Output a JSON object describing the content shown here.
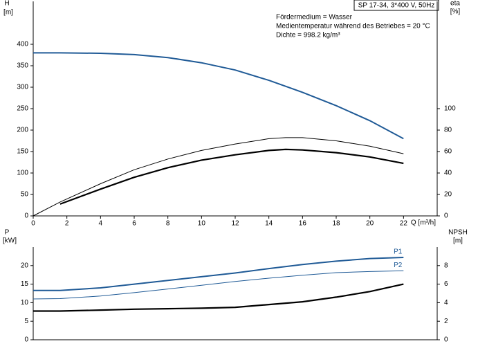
{
  "chart_data": [
    {
      "type": "line",
      "title": "SP 17-34, 3*400 V, 50Hz",
      "annotations": [
        "Fördermedium = Wasser",
        "Medientemperatur während des Betriebes = 20 °C",
        "Dichte = 998.2 kg/m³"
      ],
      "y_label": "H",
      "y_unit": "[m]",
      "y2_label": "eta",
      "y2_unit": "[%]",
      "x_label": "Q [m³/h]",
      "xlim": [
        0,
        24
      ],
      "xticks": [
        0,
        2,
        4,
        6,
        8,
        10,
        12,
        14,
        16,
        18,
        20,
        22
      ],
      "ylim": [
        0,
        500
      ],
      "yticks": [
        0,
        50,
        100,
        150,
        200,
        250,
        300,
        350,
        400
      ],
      "y2lim": [
        0,
        200
      ],
      "y2ticks": [
        0,
        20,
        40,
        60,
        80,
        100
      ],
      "series": [
        {
          "color": "#1f5a96",
          "linewidth": 2,
          "x": [
            0,
            1.6,
            4,
            6,
            8,
            10,
            12,
            14,
            16,
            18,
            20,
            22
          ],
          "values": [
            380,
            380,
            379,
            376,
            369,
            357,
            340,
            316,
            288,
            257,
            222,
            180
          ]
        },
        {
          "color": "#000000",
          "linewidth": 1,
          "axis": "y2",
          "x": [
            0,
            1.6,
            4,
            6,
            8,
            10,
            12,
            14,
            15,
            16,
            18,
            20,
            22
          ],
          "values": [
            0,
            13,
            30,
            43,
            53,
            61,
            67,
            72,
            73,
            73,
            70,
            65,
            58
          ]
        },
        {
          "color": "#000000",
          "linewidth": 2.2,
          "axis": "y2",
          "x": [
            1.6,
            4,
            6,
            8,
            10,
            12,
            14,
            15,
            16,
            18,
            20,
            22
          ],
          "values": [
            11,
            25,
            36,
            45,
            52,
            57,
            61,
            62,
            61.5,
            59,
            55,
            49
          ]
        }
      ]
    },
    {
      "type": "line",
      "y_label": "P",
      "y_unit": "[kW]",
      "y2_label": "NPSH",
      "y2_unit": "[m]",
      "xlim": [
        0,
        24
      ],
      "ylim": [
        0,
        25
      ],
      "yticks": [
        0,
        5,
        10,
        15,
        20
      ],
      "y2lim": [
        0,
        10
      ],
      "y2ticks": [
        0,
        2,
        4,
        6,
        8
      ],
      "series": [
        {
          "name": "P1",
          "color": "#1f5a96",
          "linewidth": 2,
          "x": [
            0,
            1.6,
            4,
            6,
            8,
            10,
            12,
            14,
            16,
            18,
            20,
            22
          ],
          "values": [
            13.3,
            13.3,
            14,
            15,
            16,
            17,
            18,
            19.2,
            20.3,
            21.2,
            21.9,
            22.2
          ]
        },
        {
          "name": "P2",
          "color": "#1f5a96",
          "linewidth": 1,
          "x": [
            0,
            1.6,
            4,
            6,
            8,
            10,
            12,
            14,
            16,
            18,
            20,
            22
          ],
          "values": [
            11,
            11.1,
            11.8,
            12.7,
            13.7,
            14.7,
            15.7,
            16.6,
            17.4,
            18.1,
            18.4,
            18.6
          ]
        },
        {
          "color": "#000000",
          "linewidth": 2.2,
          "axis": "y2",
          "x": [
            0,
            1.6,
            4,
            6,
            8,
            10,
            12,
            14,
            16,
            18,
            20,
            22
          ],
          "values": [
            3.1,
            3.1,
            3.2,
            3.3,
            3.35,
            3.4,
            3.5,
            3.8,
            4.1,
            4.6,
            5.2,
            6.0
          ]
        }
      ]
    }
  ]
}
